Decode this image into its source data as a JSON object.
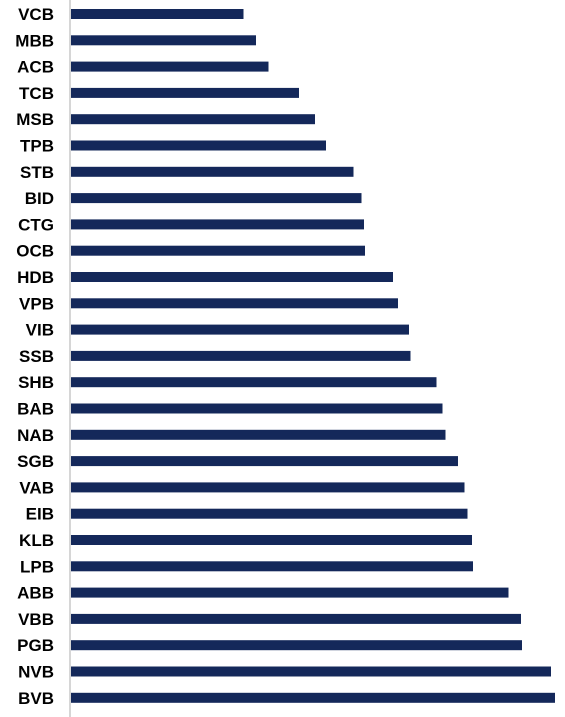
{
  "chart_data": {
    "type": "bar",
    "orientation": "horizontal",
    "title": "",
    "xlabel": "",
    "ylabel": "",
    "categories": [
      "VCB",
      "MBB",
      "ACB",
      "TCB",
      "MSB",
      "TPB",
      "STB",
      "BID",
      "CTG",
      "OCB",
      "HDB",
      "VPB",
      "VIB",
      "SSB",
      "SHB",
      "BAB",
      "NAB",
      "SGB",
      "VAB",
      "EIB",
      "KLB",
      "LPB",
      "ABB",
      "VBB",
      "PGB",
      "NVB",
      "BVB"
    ],
    "values": [
      34.5,
      37,
      39.5,
      45.6,
      48.8,
      51,
      56.5,
      58.1,
      58.6,
      58.8,
      64.4,
      65.4,
      67.6,
      67.9,
      73.1,
      74.3,
      74.9,
      77.4,
      78.7,
      79.3,
      80.2,
      80.4,
      87.5,
      90,
      90.2,
      96,
      96.8
    ],
    "xlim": [
      0,
      100
    ],
    "grid": false,
    "bar_color": "#14285a",
    "axis_color": "#c8c8c8"
  }
}
